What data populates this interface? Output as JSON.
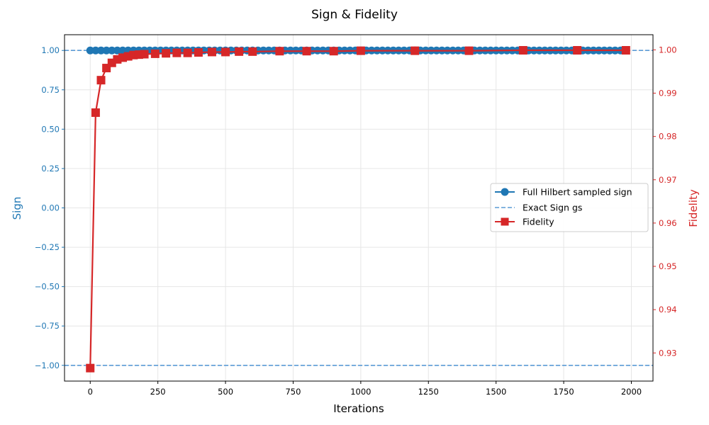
{
  "chart_data": {
    "type": "line",
    "title": "Sign & Fidelity",
    "xlabel": "Iterations",
    "ylabel_left": "Sign",
    "ylabel_right": "Fidelity",
    "xlim": [
      -95,
      2080
    ],
    "ylim_left": [
      -1.1,
      1.1
    ],
    "ylim_right": [
      0.9235,
      1.0035
    ],
    "x_ticks": [
      0,
      250,
      500,
      750,
      1000,
      1250,
      1500,
      1750,
      2000
    ],
    "y_left_ticks": [
      1.0,
      0.75,
      0.5,
      0.25,
      0.0,
      -0.25,
      -0.5,
      -0.75,
      -1.0
    ],
    "y_left_tick_labels": [
      "1.00",
      "0.75",
      "0.50",
      "0.25",
      "0.00",
      "−0.25",
      "−0.50",
      "−0.75",
      "−1.00"
    ],
    "y_right_ticks": [
      1.0,
      0.99,
      0.98,
      0.97,
      0.96,
      0.95,
      0.94,
      0.93
    ],
    "y_right_tick_labels": [
      "1.00",
      "0.99",
      "0.98",
      "0.97",
      "0.96",
      "0.95",
      "0.94",
      "0.93"
    ],
    "grid": true,
    "legend_position": "center-right",
    "colors": {
      "sign": "#1f77b4",
      "exact": "#5b9bd5",
      "fidelity": "#d62728",
      "left_axis": "#1f77b4",
      "right_axis": "#d62728"
    },
    "series": [
      {
        "name": "Full Hilbert sampled sign",
        "axis": "left",
        "marker": "circle",
        "x_start": 0,
        "x_step": 20,
        "x_end": 1980,
        "constant_value": 1.0
      },
      {
        "name": "Exact Sign gs",
        "axis": "left",
        "style": "dashed",
        "hlines": [
          1.0,
          -1.0
        ]
      },
      {
        "name": "Fidelity",
        "axis": "right",
        "marker": "square",
        "x": [
          0,
          20,
          40,
          60,
          80,
          100,
          120,
          140,
          160,
          180,
          200,
          240,
          280,
          320,
          360,
          400,
          450,
          500,
          550,
          600,
          700,
          800,
          900,
          1000,
          1200,
          1400,
          1600,
          1800,
          1980
        ],
        "y": [
          0.9265,
          0.9855,
          0.993,
          0.9958,
          0.997,
          0.9978,
          0.9982,
          0.9985,
          0.9988,
          0.9989,
          0.999,
          0.9991,
          0.9992,
          0.9993,
          0.9993,
          0.9994,
          0.9995,
          0.9995,
          0.9996,
          0.9996,
          0.9997,
          0.9997,
          0.9997,
          0.9998,
          0.9998,
          0.9998,
          0.9999,
          0.9999,
          0.9999
        ]
      }
    ]
  }
}
